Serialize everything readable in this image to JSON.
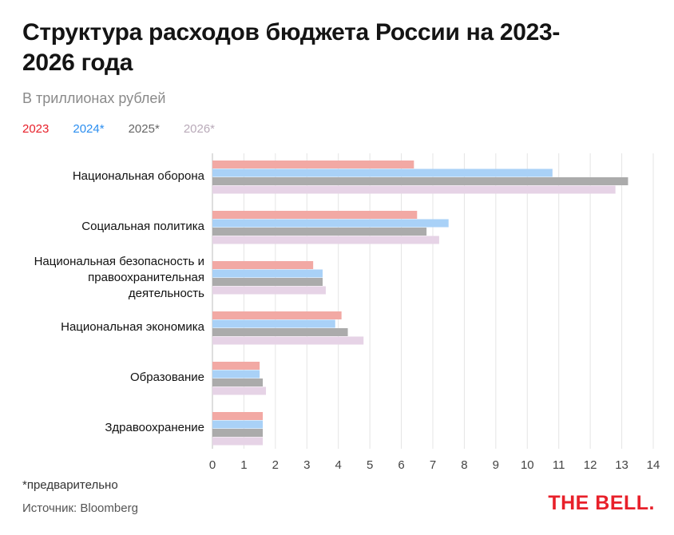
{
  "title": "Структура расходов бюджета России на 2023-2026 года",
  "subtitle": "В триллионах рублей",
  "footnote": "*предварительно",
  "source": "Источник: Bloomberg",
  "logo": "THE BELL.",
  "chart_data": {
    "type": "bar",
    "orientation": "horizontal",
    "categories": [
      "Национальная оборона",
      "Социальная политика",
      "Национальная безопасность и правоохранительная деятельность",
      "Национальная экономика",
      "Образование",
      "Здравоохранение"
    ],
    "series": [
      {
        "name": "2023",
        "color": "#f2a9a4",
        "legend_color": "#e8202a",
        "values": [
          6.4,
          6.5,
          3.2,
          4.1,
          1.5,
          1.6
        ]
      },
      {
        "name": "2024*",
        "color": "#a9d1f7",
        "legend_color": "#2b8ef0",
        "values": [
          10.8,
          7.5,
          3.5,
          3.9,
          1.5,
          1.6
        ]
      },
      {
        "name": "2025*",
        "color": "#ababab",
        "legend_color": "#666666",
        "values": [
          13.2,
          6.8,
          3.5,
          4.3,
          1.6,
          1.6
        ]
      },
      {
        "name": "2026*",
        "color": "#e6d3e6",
        "legend_color": "#b9aab9",
        "values": [
          12.8,
          7.2,
          3.6,
          4.8,
          1.7,
          1.6
        ]
      }
    ],
    "xlim": [
      0,
      14
    ],
    "xticks": [
      0,
      1,
      2,
      3,
      4,
      5,
      6,
      7,
      8,
      9,
      10,
      11,
      12,
      13,
      14
    ],
    "grid": true,
    "legend_position": "top-left"
  }
}
